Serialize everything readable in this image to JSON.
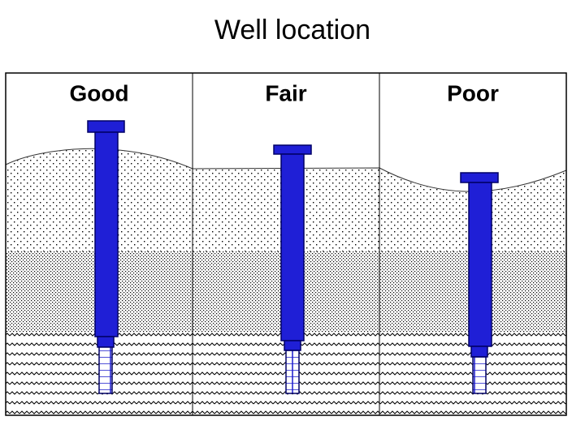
{
  "title": "Well location",
  "panels": [
    {
      "label": "Good"
    },
    {
      "label": "Fair"
    },
    {
      "label": "Poor"
    }
  ]
}
